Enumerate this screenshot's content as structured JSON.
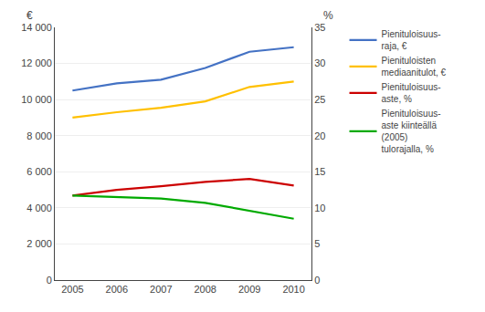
{
  "chart_data": {
    "type": "line",
    "x": [
      2005,
      2006,
      2007,
      2008,
      2009,
      2010
    ],
    "series": [
      {
        "name": "Pienituloisuus-\nraja, €",
        "color": "#4472c4",
        "values": [
          10500,
          10900,
          11100,
          11750,
          12650,
          12900
        ]
      },
      {
        "name": "Pienituloisten\nmediaanitulot, €",
        "color": "#ffc000",
        "values": [
          9000,
          9300,
          9550,
          9900,
          10700,
          11000
        ]
      },
      {
        "name": "Pienituloisuus-\naste, %",
        "color": "#cc0000",
        "values": [
          11.7,
          12.5,
          13.0,
          13.6,
          14.0,
          13.1
        ],
        "axis": "y2"
      },
      {
        "name": "Pienituloisuus-\naste kiinteällä\n(2005)\ntulorajalla, %",
        "color": "#00aa00",
        "values": [
          11.7,
          11.5,
          11.3,
          10.7,
          9.6,
          8.5
        ],
        "axis": "y2"
      }
    ],
    "xlim": [
      2004.6,
      2010.4
    ],
    "xticks": [
      2005,
      2006,
      2007,
      2008,
      2009,
      2010
    ],
    "ylim": [
      0,
      14000
    ],
    "yticks": [
      0,
      {
        "value": 2000,
        "label": "2 000"
      },
      {
        "value": 4000,
        "label": "4 000"
      },
      {
        "value": 6000,
        "label": "6 000"
      },
      {
        "value": 8000,
        "label": "8 000"
      },
      {
        "value": 10000,
        "label": "10 000"
      },
      {
        "value": 12000,
        "label": "12 000"
      },
      {
        "value": 14000,
        "label": "14 000"
      }
    ],
    "y2lim": [
      0,
      35
    ],
    "y2ticks": [
      0,
      5,
      10,
      15,
      20,
      25,
      30,
      35
    ],
    "ylabel": "€",
    "y2label": "%",
    "grid": true,
    "legend": "right"
  }
}
